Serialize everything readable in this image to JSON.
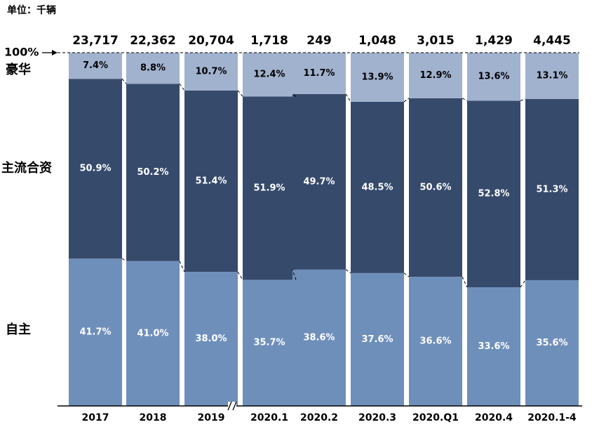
{
  "chart_data": {
    "type": "bar",
    "stacked": "percent",
    "unit_label": "单位：千辆",
    "reference_label": "100%",
    "categories": [
      "2017",
      "2018",
      "2019",
      "2020.1",
      "2020.2",
      "2020.3",
      "2020.Q1",
      "2020.4",
      "2020.1-4"
    ],
    "totals": [
      "23,717",
      "22,362",
      "20,704",
      "1,718",
      "249",
      "1,048",
      "3,015",
      "1,429",
      "4,445"
    ],
    "series": [
      {
        "name": "自主",
        "color": "#6f8fbb",
        "values": [
          41.7,
          41.0,
          38.0,
          35.7,
          38.6,
          37.6,
          36.6,
          33.6,
          35.6
        ],
        "labels": [
          "41.7%",
          "41.0%",
          "38.0%",
          "35.7%",
          "38.6%",
          "37.6%",
          "36.6%",
          "33.6%",
          "35.6%"
        ]
      },
      {
        "name": "主流合资",
        "color": "#364a6b",
        "values": [
          50.9,
          50.2,
          51.4,
          51.9,
          49.7,
          48.5,
          50.6,
          52.8,
          51.3
        ],
        "labels": [
          "50.9%",
          "50.2%",
          "51.4%",
          "51.9%",
          "49.7%",
          "48.5%",
          "50.6%",
          "52.8%",
          "51.3%"
        ]
      },
      {
        "name": "豪华",
        "color": "#a1b2cf",
        "values": [
          7.4,
          8.8,
          10.7,
          12.4,
          11.7,
          13.9,
          12.9,
          13.6,
          13.1
        ],
        "labels": [
          "7.4%",
          "8.8%",
          "10.7%",
          "12.4%",
          "11.7%",
          "13.9%",
          "12.9%",
          "13.6%",
          "13.1%"
        ]
      }
    ],
    "axis_break_after": "2019",
    "ylim": [
      0,
      100
    ]
  }
}
